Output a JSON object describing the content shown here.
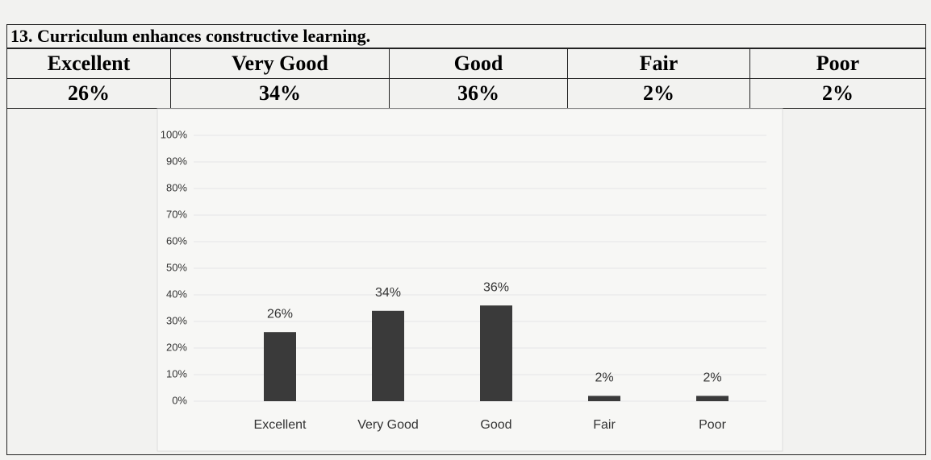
{
  "title": "13. Curriculum enhances constructive learning.",
  "table": {
    "header": [
      "Excellent",
      "Very Good",
      "Good",
      "Fair",
      "Poor"
    ],
    "rows": [
      [
        "26%",
        "34%",
        "36%",
        "2%",
        "2%"
      ]
    ]
  },
  "chart_data": {
    "type": "bar",
    "categories": [
      "Excellent",
      "Very Good",
      "Good",
      "Fair",
      "Poor"
    ],
    "values": [
      26,
      34,
      36,
      2,
      2
    ],
    "value_labels": [
      "26%",
      "34%",
      "36%",
      "2%",
      "2%"
    ],
    "color": "#3a3a3a",
    "ylim": [
      0,
      100
    ],
    "yticks": [
      {
        "value": 0,
        "label": "0%"
      },
      {
        "value": 10,
        "label": "10%"
      },
      {
        "value": 20,
        "label": "20%"
      },
      {
        "value": 30,
        "label": "30%"
      },
      {
        "value": 40,
        "label": "40%"
      },
      {
        "value": 50,
        "label": "50%"
      },
      {
        "value": 60,
        "label": "60%"
      },
      {
        "value": 70,
        "label": "70%"
      },
      {
        "value": 80,
        "label": "80%"
      },
      {
        "value": 90,
        "label": "90%"
      },
      {
        "value": 100,
        "label": "100%"
      }
    ],
    "grid": true
  }
}
